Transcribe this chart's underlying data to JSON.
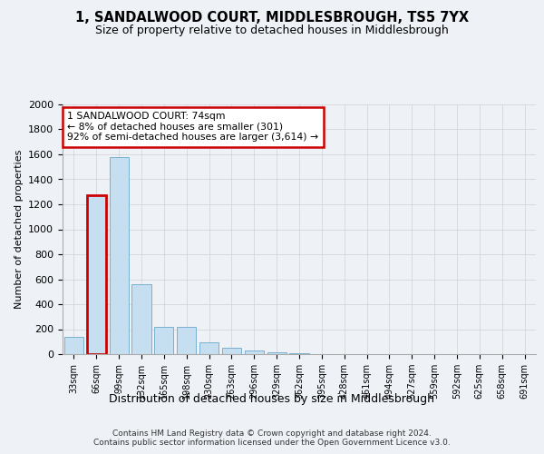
{
  "title": "1, SANDALWOOD COURT, MIDDLESBROUGH, TS5 7YX",
  "subtitle": "Size of property relative to detached houses in Middlesbrough",
  "xlabel": "Distribution of detached houses by size in Middlesbrough",
  "ylabel": "Number of detached properties",
  "bar_color": "#c6dff0",
  "bar_edge_color": "#7ab0d0",
  "categories": [
    "33sqm",
    "66sqm",
    "99sqm",
    "132sqm",
    "165sqm",
    "198sqm",
    "230sqm",
    "263sqm",
    "296sqm",
    "329sqm",
    "362sqm",
    "395sqm",
    "428sqm",
    "461sqm",
    "494sqm",
    "527sqm",
    "559sqm",
    "592sqm",
    "625sqm",
    "658sqm",
    "691sqm"
  ],
  "values": [
    140,
    1270,
    1575,
    560,
    220,
    220,
    95,
    50,
    27,
    15,
    10,
    0,
    0,
    0,
    0,
    0,
    0,
    0,
    0,
    0,
    0
  ],
  "ylim": [
    0,
    2000
  ],
  "yticks": [
    0,
    200,
    400,
    600,
    800,
    1000,
    1200,
    1400,
    1600,
    1800,
    2000
  ],
  "annotation_text": "1 SANDALWOOD COURT: 74sqm\n← 8% of detached houses are smaller (301)\n92% of semi-detached houses are larger (3,614) →",
  "annotation_box_color": "#ffffff",
  "annotation_box_edge": "#cc0000",
  "highlight_bar_index": 1,
  "highlight_bar_edge": "#cc0000",
  "footnote": "Contains HM Land Registry data © Crown copyright and database right 2024.\nContains public sector information licensed under the Open Government Licence v3.0.",
  "background_color": "#ffffff",
  "grid_color": "#d0d0d0",
  "fig_bg_color": "#eef2f7"
}
